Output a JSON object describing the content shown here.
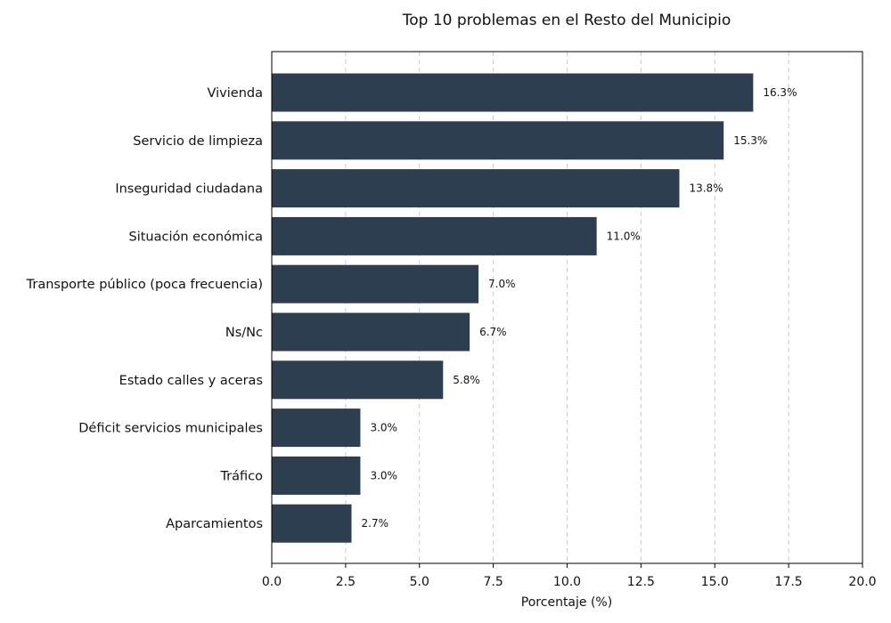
{
  "chart_data": {
    "type": "bar",
    "orientation": "horizontal",
    "title": "Top 10 problemas en el Resto del Municipio",
    "xlabel": "Porcentaje (%)",
    "ylabel": "",
    "xlim": [
      0,
      20
    ],
    "xticks": [
      0,
      2.5,
      5,
      7.5,
      10,
      12.5,
      15,
      17.5,
      20
    ],
    "xtick_labels": [
      "0.0",
      "2.5",
      "5.0",
      "7.5",
      "10.0",
      "12.5",
      "15.0",
      "17.5",
      "20.0"
    ],
    "grid": "vertical-dashed",
    "bar_color": "#2c3e50",
    "categories": [
      "Vivienda",
      "Servicio de limpieza",
      "Inseguridad ciudadana",
      "Situación económica",
      "Transporte público (poca frecuencia)",
      "Ns/Nc",
      "Estado calles y aceras",
      "Déficit servicios municipales",
      "Tráfico",
      "Aparcamientos"
    ],
    "values": [
      16.3,
      15.3,
      13.8,
      11.0,
      7.0,
      6.7,
      5.8,
      3.0,
      3.0,
      2.7
    ],
    "value_labels": [
      "16.3%",
      "15.3%",
      "13.8%",
      "11.0%",
      "7.0%",
      "6.7%",
      "5.8%",
      "3.0%",
      "3.0%",
      "2.7%"
    ]
  }
}
